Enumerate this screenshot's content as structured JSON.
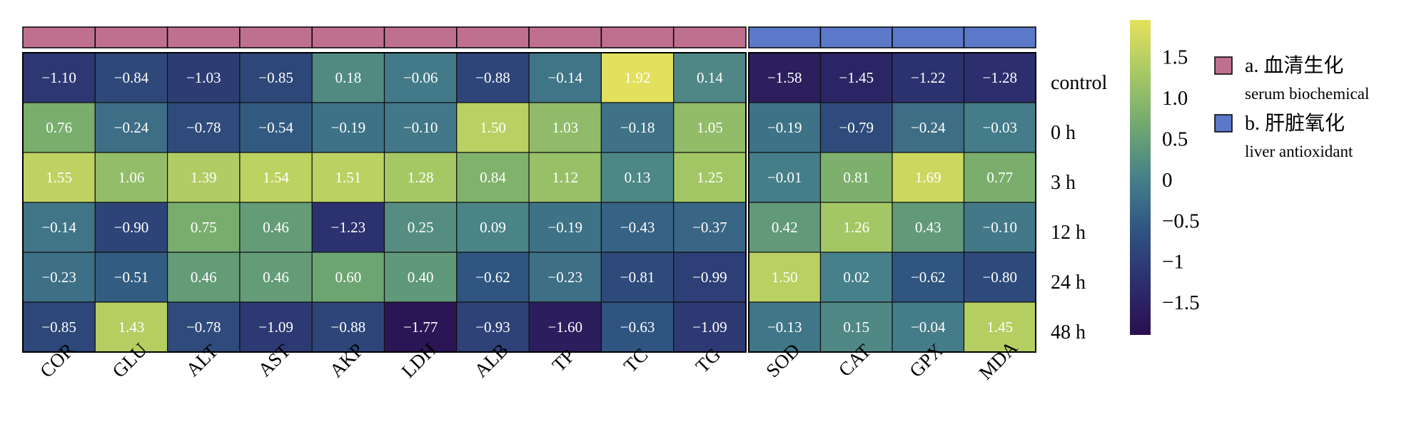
{
  "chart_data": {
    "type": "heatmap",
    "rows": [
      "control",
      "0 h",
      "3 h",
      "12 h",
      "24 h",
      "48 h"
    ],
    "groups": [
      {
        "name": "a. 血清生化",
        "name_en": "serum biochemical",
        "color": "#C0708F",
        "columns": [
          "COR",
          "GLU",
          "ALT",
          "AST",
          "AKP",
          "LDH",
          "ALB",
          "TP",
          "TC",
          "TG"
        ],
        "values": [
          [
            -1.1,
            -0.84,
            -1.03,
            -0.85,
            0.18,
            -0.06,
            -0.88,
            -0.14,
            1.92,
            0.14
          ],
          [
            0.76,
            -0.24,
            -0.78,
            -0.54,
            -0.19,
            -0.1,
            1.5,
            1.03,
            -0.18,
            1.05
          ],
          [
            1.55,
            1.06,
            1.39,
            1.54,
            1.51,
            1.28,
            0.84,
            1.12,
            0.13,
            1.25
          ],
          [
            -0.14,
            -0.9,
            0.75,
            0.46,
            -1.23,
            0.25,
            0.09,
            -0.19,
            -0.43,
            -0.37
          ],
          [
            -0.23,
            -0.51,
            0.46,
            0.46,
            0.6,
            0.4,
            -0.62,
            -0.23,
            -0.81,
            -0.99
          ],
          [
            -0.85,
            1.43,
            -0.78,
            -1.09,
            -0.88,
            -1.77,
            -0.93,
            -1.6,
            -0.63,
            -1.09
          ]
        ],
        "labels": [
          [
            "−1.10",
            "−0.84",
            "−1.03",
            "−0.85",
            "0.18",
            "−0.06",
            "−0.88",
            "−0.14",
            "1.92",
            "0.14"
          ],
          [
            "0.76",
            "−0.24",
            "−0.78",
            "−0.54",
            "−0.19",
            "−0.10",
            "1.50",
            "1.03",
            "−0.18",
            "1.05"
          ],
          [
            "1.55",
            "1.06",
            "1.39",
            "1.54",
            "1.51",
            "1.28",
            "0.84",
            "1.12",
            "0.13",
            "1.25"
          ],
          [
            "−0.14",
            "−0.90",
            "0.75",
            "0.46",
            "−1.23",
            "0.25",
            "0.09",
            "−0.19",
            "−0.43",
            "−0.37"
          ],
          [
            "−0.23",
            "−0.51",
            "0.46",
            "0.46",
            "0.60",
            "0.40",
            "−0.62",
            "−0.23",
            "−0.81",
            "−0.99"
          ],
          [
            "−0.85",
            "1.43",
            "−0.78",
            "−1.09",
            "−0.88",
            "−1.77",
            "−0.93",
            "−1.60",
            "−0.63",
            "−1.09"
          ]
        ]
      },
      {
        "name": "b. 肝脏氧化",
        "name_en": "liver antioxidant",
        "color": "#5C78C8",
        "columns": [
          "SOD",
          "CAT",
          "GPX",
          "MDA"
        ],
        "values": [
          [
            -1.58,
            -1.45,
            -1.22,
            -1.28
          ],
          [
            -0.19,
            -0.79,
            -0.24,
            -0.03
          ],
          [
            -0.01,
            0.81,
            1.69,
            0.77
          ],
          [
            0.42,
            1.26,
            0.43,
            -0.1
          ],
          [
            1.5,
            0.02,
            -0.62,
            -0.8
          ],
          [
            -0.13,
            0.15,
            -0.04,
            1.45
          ]
        ],
        "labels": [
          [
            "−1.58",
            "−1.45",
            "−1.22",
            "−1.28"
          ],
          [
            "−0.19",
            "−0.79",
            "−0.24",
            "−0.03"
          ],
          [
            "−0.01",
            "0.81",
            "1.69",
            "0.77"
          ],
          [
            "0.42",
            "1.26",
            "0.43",
            "−0.10"
          ],
          [
            "1.50",
            "0.02",
            "−0.62",
            "−0.80"
          ],
          [
            "−0.13",
            "0.15",
            "−0.04",
            "1.45"
          ]
        ]
      }
    ],
    "colorbar": {
      "min": -1.9,
      "max": 1.95,
      "ticks": [
        1.5,
        1.0,
        0.5,
        0,
        -0.5,
        -1,
        -1.5
      ],
      "tick_labels": [
        "1.5",
        "1.0",
        "0.5",
        "0",
        "−0.5",
        "−1",
        "−1.5"
      ],
      "colormap": "viridis-like (dark purple → blue → teal → green → yellow)",
      "stops": [
        "#2B0F4F",
        "#2C2F6E",
        "#2F5580",
        "#46808A",
        "#72A96F",
        "#A8C964",
        "#E5E15C"
      ]
    },
    "legend_position": "right"
  }
}
